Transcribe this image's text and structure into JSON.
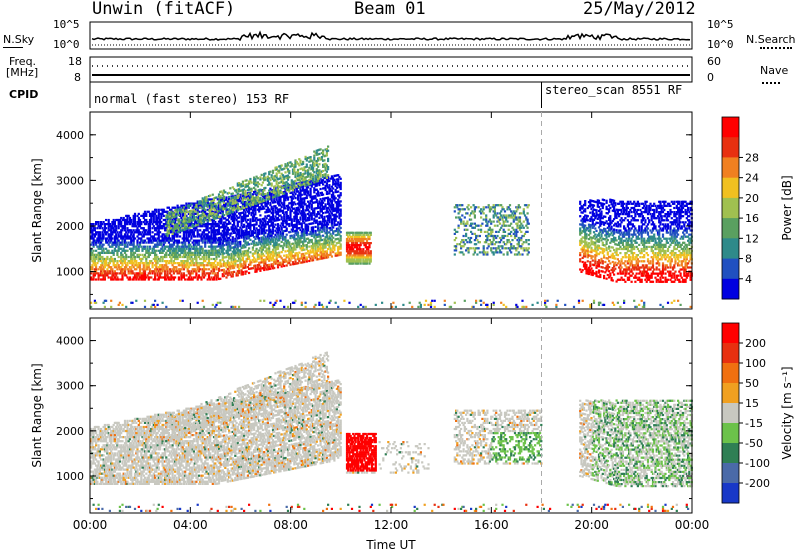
{
  "header": {
    "station": "Unwin (fitACF)",
    "beam": "Beam 01",
    "date": "25/May/2012"
  },
  "strip_panels": {
    "nsky_label": "N.Sky",
    "nsky_ticks": [
      "10^5",
      "10^0"
    ],
    "nsearch_label": "N.Search",
    "freq_label_1": "Freq.",
    "freq_label_2": "[MHz]",
    "freq_ticks": [
      "18",
      "8"
    ],
    "nave_label": "Nave",
    "nave_ticks": [
      "60",
      "0"
    ],
    "cpid_label": "CPID",
    "cpid_segments": [
      {
        "label": "normal (fast stereo) 153 RF",
        "start_hour": 0
      },
      {
        "label": "stereo_scan 8551 RF",
        "start_hour": 18
      }
    ]
  },
  "chart_data": [
    {
      "type": "heatmap",
      "name": "power-panel",
      "xlabel": "Time UT",
      "ylabel": "Slant Range [km]",
      "xlim": [
        0,
        24
      ],
      "ylim": [
        180,
        4500
      ],
      "yticks": [
        "1000",
        "2000",
        "3000",
        "4000"
      ],
      "colorbar": {
        "label": "Power [dB]",
        "ticks": [
          "4",
          "8",
          "12",
          "16",
          "20",
          "24",
          "28"
        ],
        "colors": [
          "#0000e0",
          "#2050c0",
          "#2e8a8a",
          "#5aa060",
          "#a0c050",
          "#f0c020",
          "#f08020",
          "#e83010",
          "#ff0000"
        ]
      },
      "features": [
        {
          "desc": "main scatter band",
          "x": [
            0,
            10
          ],
          "range_km": [
            800,
            3200
          ]
        },
        {
          "desc": "midday patch",
          "x": [
            10.2,
            11.2
          ],
          "range_km": [
            1200,
            1900
          ]
        },
        {
          "desc": "afternoon scatter",
          "x": [
            14.5,
            17.5
          ],
          "range_km": [
            1300,
            2600
          ]
        },
        {
          "desc": "evening scatter",
          "x": [
            19.5,
            24
          ],
          "range_km": [
            800,
            2800
          ]
        }
      ]
    },
    {
      "type": "heatmap",
      "name": "velocity-panel",
      "xlabel": "Time UT",
      "ylabel": "Slant Range [km]",
      "xlim": [
        0,
        24
      ],
      "ylim": [
        180,
        4500
      ],
      "yticks": [
        "1000",
        "2000",
        "3000",
        "4000"
      ],
      "xticks": [
        "00:00",
        "04:00",
        "08:00",
        "12:00",
        "16:00",
        "20:00",
        "00:00"
      ],
      "colorbar": {
        "label": "Velocity [m s^-1]",
        "ticks": [
          "200",
          "100",
          "50",
          "15",
          "-15",
          "-50",
          "-100",
          "-200"
        ],
        "colors": [
          "#1838c8",
          "#4a6aa8",
          "#2f7f54",
          "#6cc24a",
          "#c8c8c0",
          "#f0a020",
          "#f07010",
          "#e83010",
          "#ff0000"
        ]
      }
    }
  ]
}
